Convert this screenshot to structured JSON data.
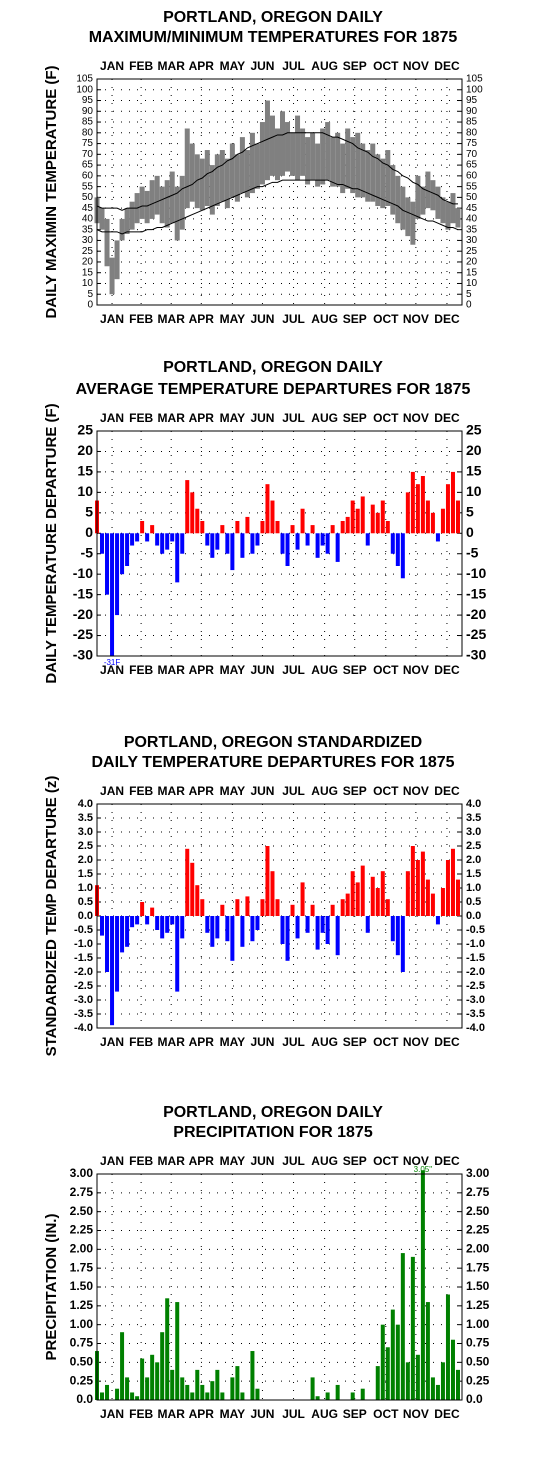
{
  "chart_data": [
    {
      "type": "range",
      "title": [
        "PORTLAND, OREGON DAILY",
        "MAXIMUM/MINIMUM TEMPERATURES FOR 1875"
      ],
      "ylabel": "DAILY MAXIMIN TEMPERATURE (F)",
      "x": [
        1,
        6,
        11,
        16,
        21,
        26,
        31,
        36,
        41,
        46,
        51,
        56,
        61,
        66,
        71,
        76,
        81,
        86,
        91,
        96,
        101,
        106,
        111,
        116,
        121,
        126,
        131,
        136,
        141,
        146,
        151,
        156,
        161,
        166,
        171,
        176,
        181,
        186,
        191,
        196,
        201,
        206,
        211,
        216,
        221,
        226,
        231,
        236,
        241,
        246,
        251,
        256,
        261,
        266,
        271,
        276,
        281,
        286,
        291,
        296,
        301,
        306,
        311,
        316,
        321,
        326,
        331,
        336,
        341,
        346,
        351,
        356,
        361
      ],
      "range": {
        "color": "#808080",
        "high": [
          50,
          45,
          40,
          22,
          30,
          40,
          45,
          48,
          52,
          55,
          53,
          58,
          60,
          55,
          58,
          62,
          55,
          60,
          82,
          75,
          70,
          68,
          72,
          65,
          70,
          72,
          68,
          75,
          70,
          78,
          72,
          80,
          75,
          85,
          95,
          88,
          82,
          90,
          85,
          80,
          88,
          82,
          78,
          80,
          75,
          82,
          85,
          78,
          80,
          75,
          82,
          78,
          80,
          75,
          72,
          75,
          70,
          68,
          72,
          65,
          60,
          55,
          50,
          48,
          60,
          55,
          62,
          58,
          55,
          50,
          48,
          52,
          45
        ],
        "low": [
          38,
          35,
          18,
          5,
          12,
          30,
          33,
          35,
          38,
          40,
          38,
          40,
          42,
          38,
          36,
          38,
          30,
          35,
          45,
          48,
          45,
          44,
          46,
          42,
          46,
          48,
          45,
          50,
          48,
          52,
          50,
          52,
          54,
          56,
          58,
          60,
          58,
          60,
          62,
          60,
          58,
          60,
          56,
          58,
          55,
          56,
          58,
          55,
          55,
          52,
          54,
          52,
          50,
          50,
          48,
          48,
          46,
          45,
          46,
          42,
          38,
          35,
          32,
          28,
          40,
          42,
          45,
          44,
          40,
          38,
          35,
          38,
          36
        ]
      },
      "lines": [
        {
          "color": "#000000",
          "values": [
            46,
            45,
            45,
            45,
            45,
            44,
            45,
            45,
            45,
            46,
            46,
            47,
            48,
            49,
            50,
            51,
            52,
            54,
            55,
            56,
            58,
            59,
            61,
            62,
            64,
            65,
            67,
            68,
            70,
            71,
            73,
            74,
            75,
            76,
            77,
            78,
            79,
            79,
            80,
            80,
            80,
            80,
            80,
            80,
            80,
            80,
            79,
            78,
            78,
            77,
            76,
            75,
            73,
            72,
            71,
            69,
            68,
            66,
            65,
            63,
            62,
            60,
            59,
            57,
            56,
            54,
            53,
            52,
            51,
            49,
            48,
            47,
            47
          ]
        },
        {
          "color": "#000000",
          "values": [
            35,
            34,
            34,
            34,
            34,
            33,
            34,
            34,
            34,
            34,
            35,
            35,
            36,
            36,
            37,
            38,
            39,
            40,
            41,
            42,
            43,
            44,
            45,
            46,
            47,
            48,
            49,
            50,
            51,
            52,
            53,
            54,
            55,
            55,
            56,
            57,
            57,
            58,
            58,
            58,
            58,
            58,
            58,
            58,
            58,
            58,
            58,
            57,
            56,
            56,
            55,
            54,
            54,
            53,
            52,
            51,
            50,
            49,
            48,
            47,
            46,
            44,
            43,
            42,
            41,
            40,
            39,
            39,
            38,
            37,
            36,
            36,
            35
          ]
        }
      ],
      "xlim": [
        1,
        365
      ],
      "xticks": [
        {
          "value": 16,
          "label": "JAN"
        },
        {
          "value": 45,
          "label": "FEB"
        },
        {
          "value": 75,
          "label": "MAR"
        },
        {
          "value": 105,
          "label": "APR"
        },
        {
          "value": 136,
          "label": "MAY"
        },
        {
          "value": 166,
          "label": "JUN"
        },
        {
          "value": 197,
          "label": "JUL"
        },
        {
          "value": 228,
          "label": "AUG"
        },
        {
          "value": 258,
          "label": "SEP"
        },
        {
          "value": 289,
          "label": "OCT"
        },
        {
          "value": 319,
          "label": "NOV"
        },
        {
          "value": 350,
          "label": "DEC"
        }
      ],
      "ylim": [
        0,
        105
      ],
      "yticks": [
        0,
        5,
        10,
        15,
        20,
        25,
        30,
        35,
        40,
        45,
        50,
        55,
        60,
        65,
        70,
        75,
        80,
        85,
        90,
        95,
        100,
        105
      ],
      "grid": true
    },
    {
      "type": "bar",
      "title": [
        "PORTLAND, OREGON DAILY",
        "AVERAGE TEMPERATURE DEPARTURES FOR 1875"
      ],
      "ylabel": "DAILY TEMPERATURE DEPARTURE (F)",
      "annotation": "-31F",
      "positive_color": "#ff0000",
      "negative_color": "#0000ff",
      "x": [
        1,
        6,
        11,
        16,
        21,
        26,
        31,
        36,
        41,
        46,
        51,
        56,
        61,
        66,
        71,
        76,
        81,
        86,
        91,
        96,
        101,
        106,
        111,
        116,
        121,
        126,
        131,
        136,
        141,
        146,
        151,
        156,
        161,
        166,
        171,
        176,
        181,
        186,
        191,
        196,
        201,
        206,
        211,
        216,
        221,
        226,
        231,
        236,
        241,
        246,
        251,
        256,
        261,
        266,
        271,
        276,
        281,
        286,
        291,
        296,
        301,
        306,
        311,
        316,
        321,
        326,
        331,
        336,
        341,
        346,
        351,
        356,
        361
      ],
      "values": [
        8,
        -5,
        -15,
        -30,
        -20,
        -10,
        -8,
        -3,
        -2,
        3,
        -2,
        2,
        -3,
        -5,
        -4,
        -2,
        -12,
        -5,
        13,
        10,
        6,
        3,
        -3,
        -6,
        -4,
        2,
        -5,
        -9,
        3,
        -6,
        4,
        -5,
        -3,
        3,
        12,
        8,
        3,
        -5,
        -8,
        2,
        -4,
        6,
        -3,
        2,
        -6,
        -3,
        -5,
        2,
        -7,
        3,
        4,
        8,
        6,
        9,
        -3,
        7,
        5,
        8,
        3,
        -5,
        -8,
        -11,
        10,
        15,
        12,
        14,
        8,
        5,
        -2,
        6,
        12,
        15,
        8
      ],
      "xlim": [
        1,
        365
      ],
      "xticks": [
        {
          "value": 16,
          "label": "JAN"
        },
        {
          "value": 45,
          "label": "FEB"
        },
        {
          "value": 75,
          "label": "MAR"
        },
        {
          "value": 105,
          "label": "APR"
        },
        {
          "value": 136,
          "label": "MAY"
        },
        {
          "value": 166,
          "label": "JUN"
        },
        {
          "value": 197,
          "label": "JUL"
        },
        {
          "value": 228,
          "label": "AUG"
        },
        {
          "value": 258,
          "label": "SEP"
        },
        {
          "value": 289,
          "label": "OCT"
        },
        {
          "value": 319,
          "label": "NOV"
        },
        {
          "value": 350,
          "label": "DEC"
        }
      ],
      "ylim": [
        -30,
        25
      ],
      "yticks": [
        -30,
        -25,
        -20,
        -15,
        -10,
        -5,
        0,
        5,
        10,
        15,
        20,
        25
      ],
      "grid": true
    },
    {
      "type": "bar",
      "title": [
        "PORTLAND, OREGON STANDARDIZED",
        "DAILY TEMPERATURE DEPARTURES FOR 1875"
      ],
      "ylabel": "STANDARDIZED TEMP DEPARTURE (z)",
      "positive_color": "#ff0000",
      "negative_color": "#0000ff",
      "x": [
        1,
        6,
        11,
        16,
        21,
        26,
        31,
        36,
        41,
        46,
        51,
        56,
        61,
        66,
        71,
        76,
        81,
        86,
        91,
        96,
        101,
        106,
        111,
        116,
        121,
        126,
        131,
        136,
        141,
        146,
        151,
        156,
        161,
        166,
        171,
        176,
        181,
        186,
        191,
        196,
        201,
        206,
        211,
        216,
        221,
        226,
        231,
        236,
        241,
        246,
        251,
        256,
        261,
        266,
        271,
        276,
        281,
        286,
        291,
        296,
        301,
        306,
        311,
        316,
        321,
        326,
        331,
        336,
        341,
        346,
        351,
        356,
        361
      ],
      "values": [
        1.1,
        -0.7,
        -2.0,
        -3.9,
        -2.7,
        -1.3,
        -1.1,
        -0.4,
        -0.3,
        0.5,
        -0.3,
        0.3,
        -0.5,
        -0.8,
        -0.6,
        -0.3,
        -2.7,
        -0.8,
        2.4,
        1.9,
        1.1,
        0.6,
        -0.6,
        -1.1,
        -0.8,
        0.4,
        -0.9,
        -1.6,
        0.6,
        -1.1,
        0.7,
        -0.9,
        -0.5,
        0.6,
        2.5,
        1.6,
        0.6,
        -1.0,
        -1.6,
        0.4,
        -0.8,
        1.2,
        -0.6,
        0.4,
        -1.2,
        -0.6,
        -1.0,
        0.4,
        -1.4,
        0.6,
        0.8,
        1.6,
        1.2,
        1.8,
        -0.6,
        1.4,
        1.0,
        1.6,
        0.6,
        -0.9,
        -1.4,
        -2.0,
        1.6,
        2.5,
        2.0,
        2.3,
        1.3,
        0.8,
        -0.3,
        1.0,
        2.0,
        2.4,
        1.3
      ],
      "xlim": [
        1,
        365
      ],
      "xticks": [
        {
          "value": 16,
          "label": "JAN"
        },
        {
          "value": 45,
          "label": "FEB"
        },
        {
          "value": 75,
          "label": "MAR"
        },
        {
          "value": 105,
          "label": "APR"
        },
        {
          "value": 136,
          "label": "MAY"
        },
        {
          "value": 166,
          "label": "JUN"
        },
        {
          "value": 197,
          "label": "JUL"
        },
        {
          "value": 228,
          "label": "AUG"
        },
        {
          "value": 258,
          "label": "SEP"
        },
        {
          "value": 289,
          "label": "OCT"
        },
        {
          "value": 319,
          "label": "NOV"
        },
        {
          "value": 350,
          "label": "DEC"
        }
      ],
      "ylim": [
        -4,
        4
      ],
      "yticks": [
        {
          "value": -4,
          "label": "-4.0"
        },
        -3.5,
        {
          "value": -3,
          "label": "-3.0"
        },
        -2.5,
        {
          "value": -2,
          "label": "-2.0"
        },
        -1.5,
        {
          "value": -1,
          "label": "-1.0"
        },
        -0.5,
        {
          "value": 0,
          "label": "0.0"
        },
        0.5,
        {
          "value": 1,
          "label": "1.0"
        },
        1.5,
        {
          "value": 2,
          "label": "2.0"
        },
        2.5,
        {
          "value": 3,
          "label": "3.0"
        },
        3.5,
        {
          "value": 4,
          "label": "4.0"
        }
      ],
      "grid": true
    },
    {
      "type": "bar",
      "title": [
        "PORTLAND, OREGON DAILY",
        "PRECIPITATION FOR 1875"
      ],
      "ylabel": "PRECIPITATION (IN.)",
      "annotation": "3.05\"",
      "positive_color": "#008000",
      "negative_color": "#008000",
      "x": [
        1,
        6,
        11,
        16,
        21,
        26,
        31,
        36,
        41,
        46,
        51,
        56,
        61,
        66,
        71,
        76,
        81,
        86,
        91,
        96,
        101,
        106,
        111,
        116,
        121,
        126,
        131,
        136,
        141,
        146,
        151,
        156,
        161,
        166,
        171,
        176,
        181,
        186,
        191,
        196,
        201,
        206,
        211,
        216,
        221,
        226,
        231,
        236,
        241,
        246,
        251,
        256,
        261,
        266,
        271,
        276,
        281,
        286,
        291,
        296,
        301,
        306,
        311,
        316,
        321,
        326,
        331,
        336,
        341,
        346,
        351,
        356,
        361
      ],
      "values": [
        0.65,
        0.1,
        0.2,
        0,
        0.15,
        0.9,
        0.3,
        0.1,
        0.05,
        0.55,
        0.3,
        0.6,
        0.5,
        0.9,
        1.35,
        0.4,
        1.3,
        0.3,
        0.2,
        0.1,
        0.4,
        0.2,
        0.1,
        0.25,
        0.4,
        0.1,
        0,
        0.3,
        0.45,
        0.1,
        0,
        0.65,
        0.15,
        0,
        0,
        0,
        0,
        0,
        0,
        0,
        0,
        0,
        0,
        0.3,
        0.05,
        0,
        0.1,
        0,
        0.2,
        0,
        0,
        0.1,
        0,
        0.15,
        0,
        0,
        0.45,
        1.0,
        0.7,
        1.2,
        1.0,
        1.95,
        0.5,
        1.9,
        0.6,
        3.05,
        1.3,
        0.3,
        0.2,
        0.5,
        1.4,
        0.8,
        0.4
      ],
      "xlim": [
        1,
        365
      ],
      "xticks": [
        {
          "value": 16,
          "label": "JAN"
        },
        {
          "value": 45,
          "label": "FEB"
        },
        {
          "value": 75,
          "label": "MAR"
        },
        {
          "value": 105,
          "label": "APR"
        },
        {
          "value": 136,
          "label": "MAY"
        },
        {
          "value": 166,
          "label": "JUN"
        },
        {
          "value": 197,
          "label": "JUL"
        },
        {
          "value": 228,
          "label": "AUG"
        },
        {
          "value": 258,
          "label": "SEP"
        },
        {
          "value": 289,
          "label": "OCT"
        },
        {
          "value": 319,
          "label": "NOV"
        },
        {
          "value": 350,
          "label": "DEC"
        }
      ],
      "ylim": [
        0,
        3
      ],
      "yticks": [
        {
          "value": 0,
          "label": "0.0"
        },
        0.25,
        {
          "value": 0.5,
          "label": "0.50"
        },
        0.75,
        {
          "value": 1,
          "label": "1.00"
        },
        1.25,
        {
          "value": 1.5,
          "label": "1.50"
        },
        1.75,
        {
          "value": 2,
          "label": "2.00"
        },
        2.25,
        {
          "value": 2.5,
          "label": "2.50"
        },
        2.75,
        {
          "value": 3,
          "label": "3.00"
        }
      ],
      "grid": true
    }
  ]
}
